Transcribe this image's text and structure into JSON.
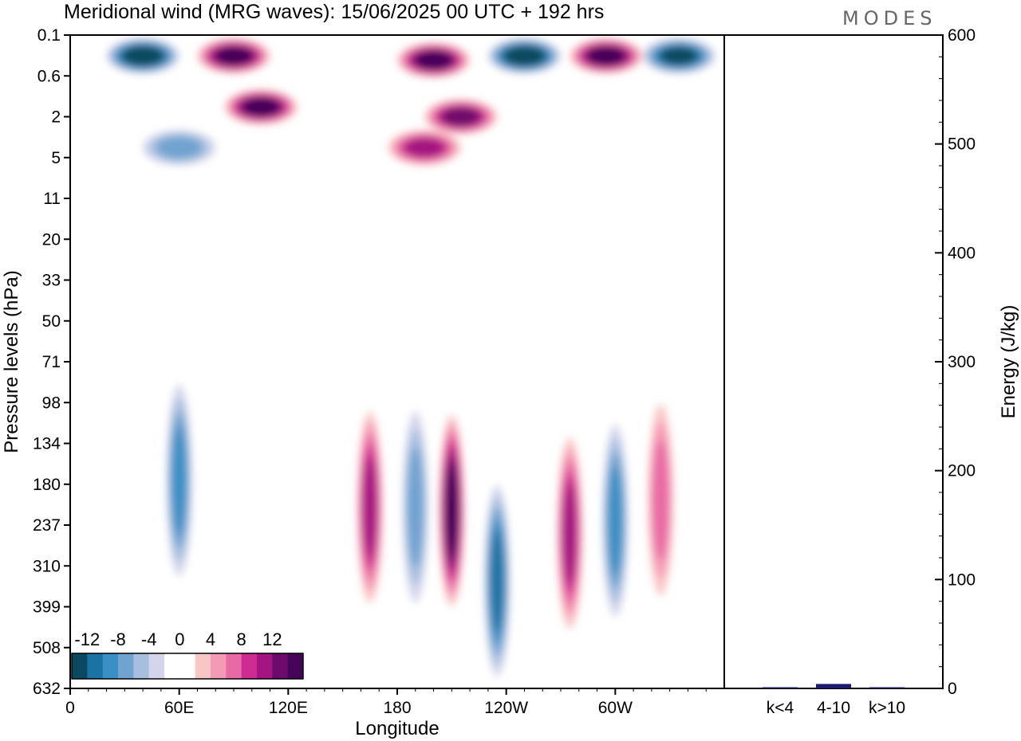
{
  "title": "Meridional wind (MRG waves):  15/06/2025  00 UTC  + 192 hrs",
  "logo": "MODES",
  "chart_data": [
    {
      "type": "heatmap",
      "xlabel": "Longitude",
      "ylabel": "Pressure levels (hPa)",
      "x_ticks": [
        "0",
        "60E",
        "120E",
        "180",
        "120W",
        "60W"
      ],
      "y_ticks": [
        "0.1",
        "0.6",
        "2",
        "5",
        "11",
        "20",
        "33",
        "50",
        "71",
        "98",
        "134",
        "180",
        "237",
        "310",
        "399",
        "508",
        "632"
      ],
      "colorbar": {
        "tick_labels": [
          "-12",
          "-8",
          "-4",
          "0",
          "4",
          "8",
          "12"
        ],
        "colors": [
          "#0a4a5e",
          "#1b73a3",
          "#3a8fc4",
          "#6fa3d0",
          "#a6bfdf",
          "#d3d6eb",
          "#ffffff",
          "#ffffff",
          "#f9c6c6",
          "#f49ab7",
          "#e86aa4",
          "#cf2c93",
          "#a31681",
          "#6e0a6c",
          "#450659"
        ]
      },
      "features": [
        {
          "lon": 40,
          "level": 0.25,
          "value": -14
        },
        {
          "lon": 90,
          "level": 0.25,
          "value": 14
        },
        {
          "lon": 200,
          "level": 0.3,
          "value": 14
        },
        {
          "lon": 250,
          "level": 0.25,
          "value": -14
        },
        {
          "lon": 295,
          "level": 0.25,
          "value": 14
        },
        {
          "lon": 335,
          "level": 0.25,
          "value": -12
        },
        {
          "lon": 105,
          "level": 1.5,
          "value": 14
        },
        {
          "lon": 215,
          "level": 2,
          "value": 12
        },
        {
          "lon": 195,
          "level": 4,
          "value": 10
        },
        {
          "lon": 60,
          "level": 4,
          "value": -6
        },
        {
          "lon": 165,
          "level": 210,
          "value": 10
        },
        {
          "lon": 190,
          "level": 210,
          "value": -6
        },
        {
          "lon": 210,
          "level": 215,
          "value": 14
        },
        {
          "lon": 235,
          "level": 340,
          "value": -10
        },
        {
          "lon": 275,
          "level": 250,
          "value": 10
        },
        {
          "lon": 300,
          "level": 230,
          "value": -8
        },
        {
          "lon": 60,
          "level": 175,
          "value": -8
        },
        {
          "lon": 325,
          "level": 200,
          "value": 6
        }
      ]
    },
    {
      "type": "bar",
      "categories": [
        "k<4",
        "4-10",
        "k>10"
      ],
      "values": [
        0,
        3,
        0
      ],
      "ylabel": "Energy (J/kg)",
      "ylim": [
        0,
        600
      ],
      "y_ticks": [
        0,
        100,
        200,
        300,
        400,
        500,
        600
      ],
      "bar_color": "#1a1a6e"
    }
  ]
}
